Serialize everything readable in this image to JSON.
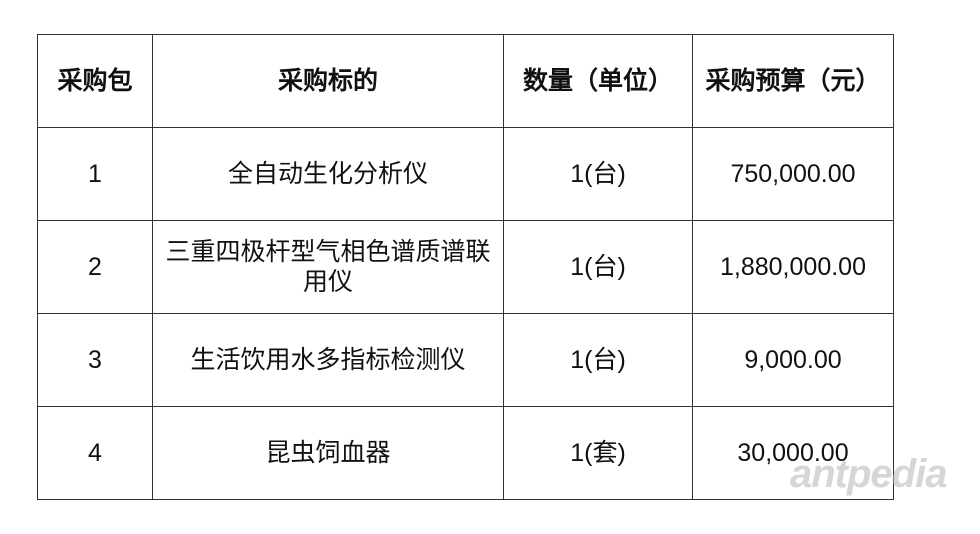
{
  "table": {
    "headers": [
      "采购包",
      "采购标的",
      "数量（单位）",
      "采购预算（元）"
    ],
    "rows": [
      [
        "1",
        "全自动生化分析仪",
        "1(台)",
        "750,000.00"
      ],
      [
        "2",
        "三重四极杆型气相色谱质谱联用仪",
        "1(台)",
        "1,880,000.00"
      ],
      [
        "3",
        "生活饮用水多指标检测仪",
        "1(台)",
        "9,000.00"
      ],
      [
        "4",
        "昆虫饲血器",
        "1(套)",
        "30,000.00"
      ]
    ]
  },
  "watermark": "antpedia"
}
